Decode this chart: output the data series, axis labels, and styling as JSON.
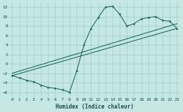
{
  "xlabel": "Humidex (Indice chaleur)",
  "xlim": [
    -0.5,
    23.5
  ],
  "ylim": [
    -7,
    13
  ],
  "xticks": [
    0,
    1,
    2,
    3,
    4,
    5,
    6,
    7,
    8,
    9,
    10,
    11,
    12,
    13,
    14,
    15,
    16,
    17,
    18,
    19,
    20,
    21,
    22,
    23
  ],
  "yticks": [
    -6,
    -4,
    -2,
    0,
    2,
    4,
    6,
    8,
    10,
    12
  ],
  "bg_color": "#c5e8e5",
  "grid_color": "#a8cfcc",
  "line_color": "#1e6b65",
  "curve1_x": [
    0,
    1,
    2,
    3,
    4,
    5,
    6,
    7,
    8,
    9,
    10,
    11,
    12,
    13,
    14,
    15,
    16,
    17,
    18,
    19,
    20,
    21,
    22,
    23
  ],
  "curve1_y": [
    -2.5,
    -3.0,
    -3.5,
    -3.8,
    -4.5,
    -5.0,
    -5.2,
    -5.5,
    -6.0,
    -1.5,
    4.0,
    7.5,
    9.8,
    12.0,
    12.2,
    10.5,
    8.0,
    8.5,
    9.5,
    9.8,
    10.0,
    9.2,
    9.0,
    7.5
  ],
  "line1_x": [
    0,
    23
  ],
  "line1_y": [
    -2.5,
    7.5
  ],
  "line2_x": [
    0,
    23
  ],
  "line2_y": [
    -2.0,
    8.5
  ]
}
